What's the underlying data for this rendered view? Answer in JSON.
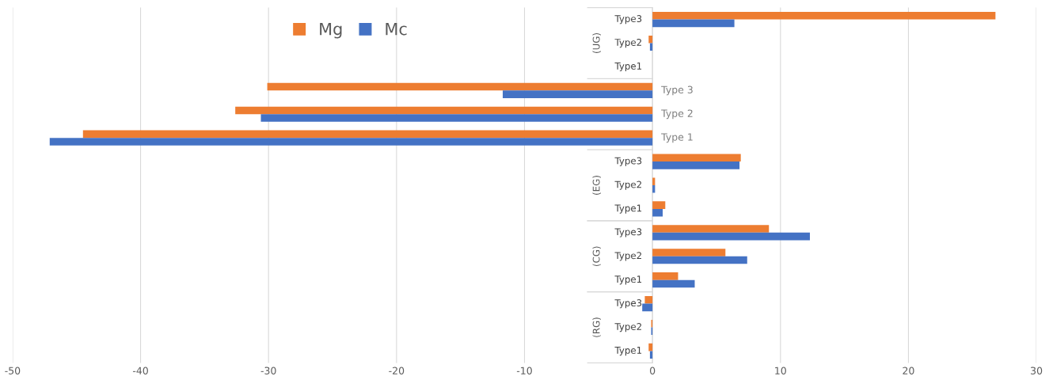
{
  "chart_data": {
    "type": "bar",
    "orientation": "horizontal",
    "categories": [
      "Type3",
      "Type2",
      "Type1",
      "Type 3",
      "Type 2",
      "Type 1",
      "Type3",
      "Type2",
      "Type1",
      "Type3",
      "Type2",
      "Type1",
      "Type3",
      "Type2",
      "Type1"
    ],
    "series": [
      {
        "name": "Mg",
        "color": "#ed7d31",
        "values": [
          26.8,
          -0.3,
          0,
          -30.1,
          -32.6,
          -44.5,
          6.9,
          0.2,
          1.0,
          9.1,
          5.7,
          2.0,
          -0.6,
          -0.1,
          -0.3
        ]
      },
      {
        "name": "Mc",
        "color": "#4472c4",
        "values": [
          6.4,
          -0.2,
          0,
          -11.7,
          -30.6,
          -47.1,
          6.8,
          0.2,
          0.8,
          12.3,
          7.4,
          3.3,
          -0.8,
          -0.1,
          -0.2
        ]
      }
    ],
    "annotations": [
      "(UG)",
      "(EG)",
      "(CG)",
      "(RG)"
    ],
    "xlim": [
      -50,
      30
    ],
    "xticks": [
      -50,
      -40,
      -30,
      -20,
      -10,
      0,
      10,
      20,
      30
    ],
    "grid": "x",
    "legend": "top left"
  }
}
